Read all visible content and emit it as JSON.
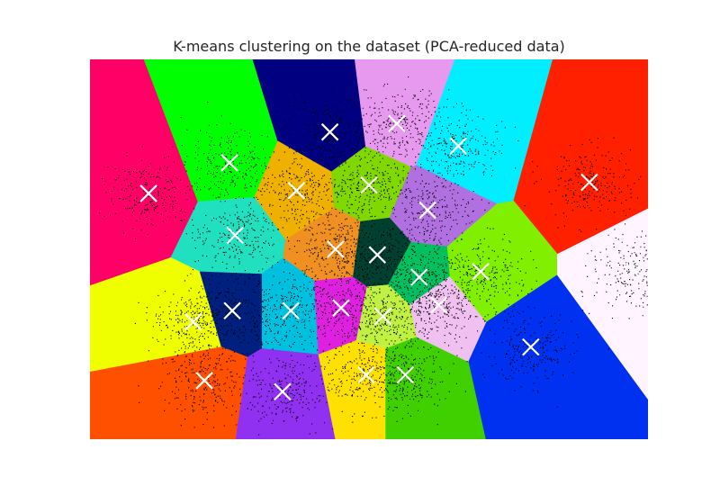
{
  "chart_data": {
    "type": "scatter",
    "title": "K-means clustering on the  dataset (PCA-reduced data)",
    "xlabel": "",
    "ylabel": "",
    "xlim": [
      -10,
      10
    ],
    "ylim": [
      -6.8,
      6.8
    ],
    "axes_visible": false,
    "grid": false,
    "background": "voronoi-regions",
    "centroid_marker": "x",
    "centroid_color": "#ffffff",
    "point_color": "#000000",
    "centroids": [
      {
        "x": -7.9,
        "y": 2.0,
        "color": "#ff0066"
      },
      {
        "x": -5.0,
        "y": 3.1,
        "color": "#00ff00"
      },
      {
        "x": -1.4,
        "y": 4.2,
        "color": "#000080"
      },
      {
        "x": 1.0,
        "y": 4.5,
        "color": "#e699ee"
      },
      {
        "x": 3.2,
        "y": 3.7,
        "color": "#00eeff"
      },
      {
        "x": 7.9,
        "y": 2.4,
        "color": "#ff2000"
      },
      {
        "x": -2.6,
        "y": 2.1,
        "color": "#f0b000"
      },
      {
        "x": 0.0,
        "y": 2.3,
        "color": "#80d800"
      },
      {
        "x": 2.1,
        "y": 1.4,
        "color": "#b070e0"
      },
      {
        "x": -4.8,
        "y": 0.5,
        "color": "#20e0c0"
      },
      {
        "x": -1.2,
        "y": 0.0,
        "color": "#f09020"
      },
      {
        "x": 0.3,
        "y": -0.2,
        "color": "#004030"
      },
      {
        "x": 1.8,
        "y": -1.0,
        "color": "#00c060"
      },
      {
        "x": 2.5,
        "y": -2.0,
        "color": "#f0c0f0"
      },
      {
        "x": 4.0,
        "y": -0.8,
        "color": "#80f000"
      },
      {
        "x": -2.8,
        "y": -2.2,
        "color": "#00c0e0"
      },
      {
        "x": -1.0,
        "y": -2.1,
        "color": "#e020e0"
      },
      {
        "x": 0.5,
        "y": -2.4,
        "color": "#c0f040"
      },
      {
        "x": -6.3,
        "y": -2.6,
        "color": "#f0ff00"
      },
      {
        "x": -4.9,
        "y": -2.2,
        "color": "#002080"
      },
      {
        "x": 5.8,
        "y": -3.5,
        "color": "#0030f0"
      },
      {
        "x": -5.9,
        "y": -4.7,
        "color": "#ff5000"
      },
      {
        "x": -3.1,
        "y": -5.1,
        "color": "#9030f0"
      },
      {
        "x": -0.1,
        "y": -4.5,
        "color": "#ffe000"
      },
      {
        "x": 1.3,
        "y": -4.5,
        "color": "#40d000"
      },
      {
        "x": 9.5,
        "y": -0.8,
        "color": "#fff4ff"
      }
    ]
  }
}
